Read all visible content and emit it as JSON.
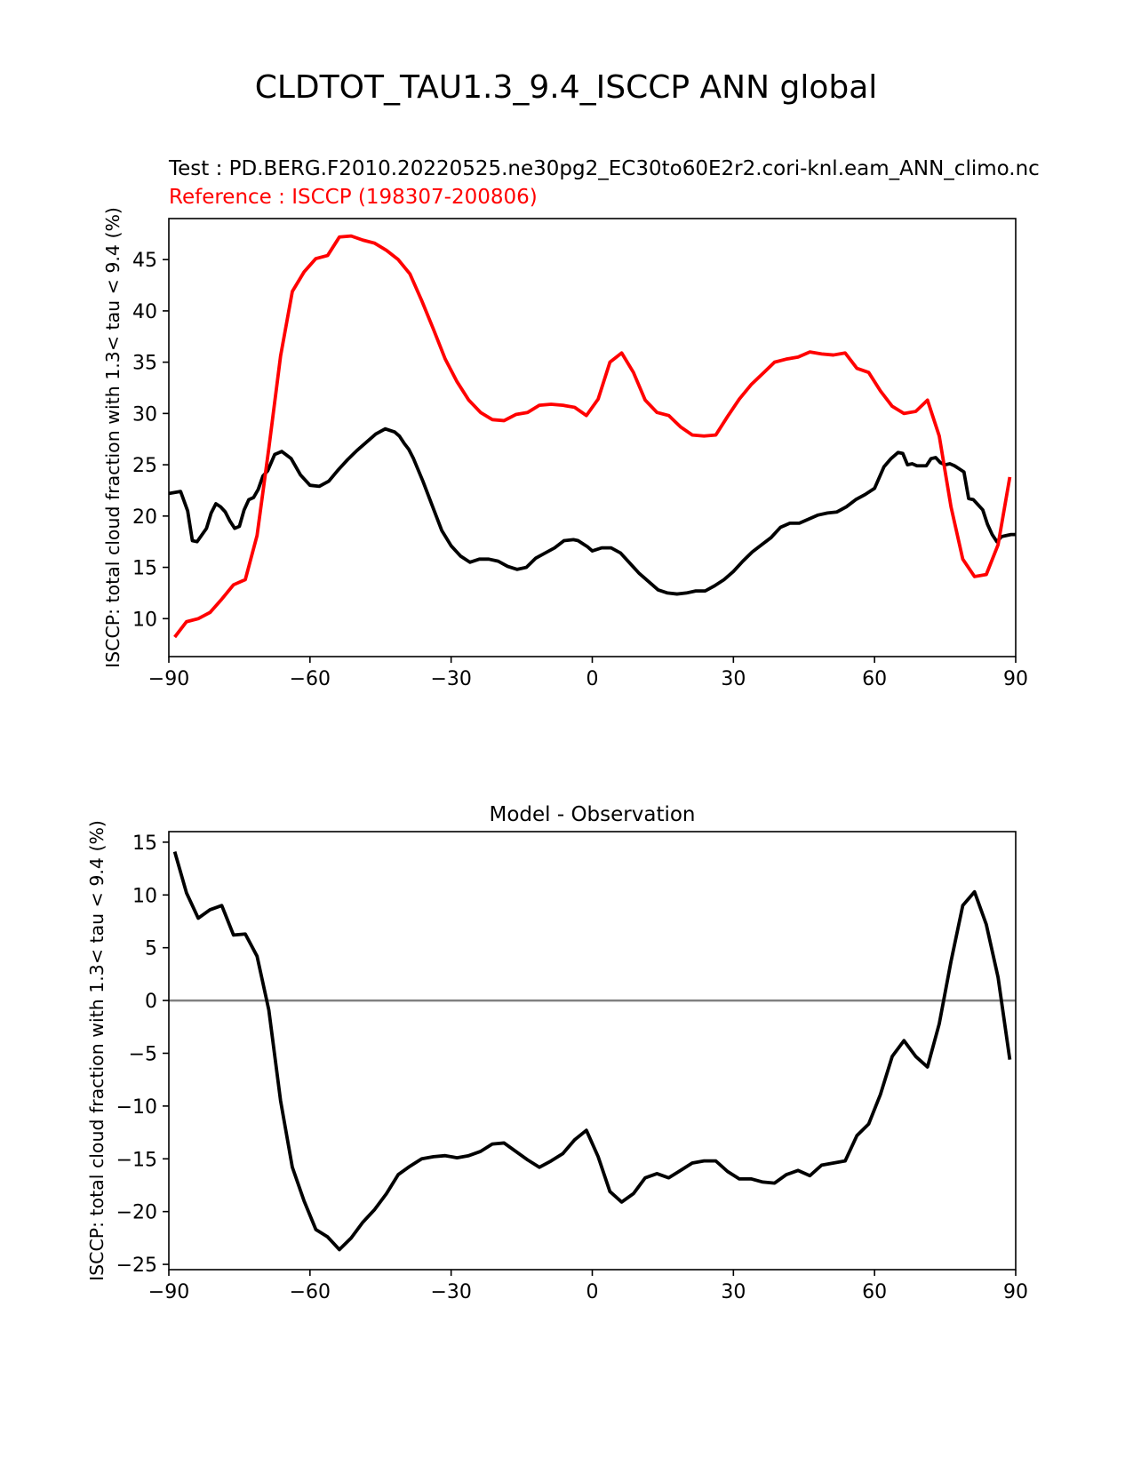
{
  "figure": {
    "title": "CLDTOT_TAU1.3_9.4_ISCCP ANN global",
    "test_label": "Test : PD.BERG.F2010.20220525.ne30pg2_EC30to60E2r2.cori-knl.eam_ANN_climo.nc",
    "reference_label": "Reference : ISCCP (198307-200806)"
  },
  "colors": {
    "test": "#000000",
    "reference": "#ff0000",
    "zero_line": "#808080"
  },
  "chart_data": [
    {
      "type": "line",
      "title": "",
      "xlabel": "",
      "ylabel": "ISCCP: total cloud fraction with 1.3< tau < 9.4 (%)",
      "xlim": [
        -90,
        90
      ],
      "ylim": [
        6.3,
        49
      ],
      "xticks": [
        -90,
        -60,
        -30,
        0,
        30,
        60,
        90
      ],
      "xtick_labels": [
        "−90",
        "−60",
        "−30",
        "0",
        "30",
        "60",
        "90"
      ],
      "yticks": [
        10,
        15,
        20,
        25,
        30,
        35,
        40,
        45
      ],
      "ytick_labels": [
        "10",
        "15",
        "20",
        "25",
        "30",
        "35",
        "40",
        "45"
      ],
      "series": [
        {
          "name": "Test",
          "color": "#000000",
          "x": [
            -90,
            -87.5,
            -86,
            -85,
            -84,
            -82,
            -81,
            -80,
            -79,
            -78,
            -77,
            -76,
            -75,
            -74,
            -73,
            -72,
            -71,
            -70,
            -69,
            -67.5,
            -66,
            -64,
            -62,
            -60,
            -58,
            -56,
            -54,
            -52,
            -50,
            -48,
            -46,
            -44,
            -42,
            -41,
            -40,
            -39,
            -38,
            -36,
            -34,
            -32,
            -30,
            -28,
            -26,
            -24,
            -22,
            -20,
            -18,
            -16,
            -14,
            -12,
            -10,
            -8,
            -6,
            -4,
            -3,
            -2,
            -1,
            0,
            2,
            4,
            6,
            8,
            10,
            12,
            14,
            16,
            18,
            20,
            22,
            24,
            26,
            28,
            30,
            32,
            34,
            36,
            38,
            40,
            42,
            44,
            46,
            48,
            50,
            52,
            54,
            56,
            58,
            60,
            62,
            63.5,
            65,
            66,
            67,
            68,
            69,
            71,
            72,
            73,
            74,
            75,
            76,
            77,
            78,
            79,
            80,
            81,
            82,
            83,
            84,
            85,
            86,
            87,
            88,
            89,
            90
          ],
          "values": [
            22.2,
            22.4,
            20.5,
            17.6,
            17.5,
            18.8,
            20.3,
            21.2,
            20.9,
            20.4,
            19.5,
            18.8,
            19.0,
            20.6,
            21.6,
            21.8,
            22.6,
            23.9,
            24.4,
            26.0,
            26.3,
            25.6,
            24.0,
            23.0,
            22.9,
            23.4,
            24.5,
            25.5,
            26.4,
            27.2,
            28.0,
            28.5,
            28.2,
            27.8,
            27.1,
            26.5,
            25.6,
            23.4,
            21.0,
            18.6,
            17.1,
            16.1,
            15.5,
            15.8,
            15.8,
            15.6,
            15.1,
            14.8,
            15.0,
            15.9,
            16.4,
            16.9,
            17.6,
            17.7,
            17.6,
            17.3,
            17.0,
            16.6,
            16.9,
            16.9,
            16.4,
            15.4,
            14.4,
            13.6,
            12.8,
            12.5,
            12.4,
            12.5,
            12.7,
            12.7,
            13.2,
            13.8,
            14.6,
            15.6,
            16.5,
            17.2,
            17.9,
            18.9,
            19.3,
            19.3,
            19.7,
            20.1,
            20.3,
            20.4,
            20.9,
            21.6,
            22.1,
            22.7,
            24.8,
            25.6,
            26.2,
            26.1,
            25.0,
            25.1,
            24.9,
            24.9,
            25.6,
            25.7,
            25.2,
            25.0,
            25.1,
            24.9,
            24.6,
            24.3,
            21.7,
            21.6,
            21.1,
            20.6,
            19.2,
            18.2,
            17.5,
            18.0,
            18.1,
            18.2,
            18.2
          ],
          "linestyle": "solid"
        },
        {
          "name": "Reference",
          "color": "#ff0000",
          "x": [
            -88.75,
            -86.25,
            -83.75,
            -81.25,
            -78.75,
            -76.25,
            -73.75,
            -71.25,
            -68.75,
            -66.25,
            -63.75,
            -61.25,
            -58.75,
            -56.25,
            -53.75,
            -51.25,
            -48.75,
            -46.25,
            -43.75,
            -41.25,
            -38.75,
            -36.25,
            -33.75,
            -31.25,
            -28.75,
            -26.25,
            -23.75,
            -21.25,
            -18.75,
            -16.25,
            -13.75,
            -11.25,
            -8.75,
            -6.25,
            -3.75,
            -1.25,
            1.25,
            3.75,
            6.25,
            8.75,
            11.25,
            13.75,
            16.25,
            18.75,
            21.25,
            23.75,
            26.25,
            28.75,
            31.25,
            33.75,
            36.25,
            38.75,
            41.25,
            43.75,
            46.25,
            48.75,
            51.25,
            53.75,
            56.25,
            58.75,
            61.25,
            63.75,
            66.25,
            68.75,
            71.25,
            73.75,
            76.25,
            78.75,
            81.25,
            83.75,
            86.25,
            88.75
          ],
          "values": [
            8.2,
            9.7,
            10.0,
            10.6,
            11.9,
            13.3,
            13.8,
            18.1,
            26.6,
            35.6,
            41.9,
            43.8,
            45.1,
            45.4,
            47.2,
            47.3,
            46.9,
            46.6,
            45.9,
            45.0,
            43.6,
            41.0,
            38.2,
            35.3,
            33.1,
            31.3,
            30.1,
            29.4,
            29.3,
            29.9,
            30.1,
            30.8,
            30.9,
            30.8,
            30.6,
            29.8,
            31.4,
            35.0,
            35.9,
            34.0,
            31.3,
            30.1,
            29.8,
            28.7,
            27.9,
            27.8,
            27.9,
            29.7,
            31.4,
            32.8,
            33.9,
            35.0,
            35.3,
            35.5,
            36.0,
            35.8,
            35.7,
            35.9,
            34.4,
            34.0,
            32.2,
            30.7,
            30.0,
            30.2,
            31.3,
            27.8,
            20.9,
            15.8,
            14.1,
            14.3,
            17.2,
            23.8
          ],
          "linestyle": "solid"
        }
      ]
    },
    {
      "type": "line",
      "title": "Model - Observation",
      "xlabel": "",
      "ylabel": "ISCCP: total cloud fraction with 1.3< tau < 9.4 (%)",
      "xlim": [
        -90,
        90
      ],
      "ylim": [
        -25.5,
        16
      ],
      "xticks": [
        -90,
        -60,
        -30,
        0,
        30,
        60,
        90
      ],
      "xtick_labels": [
        "−90",
        "−60",
        "−30",
        "0",
        "30",
        "60",
        "90"
      ],
      "yticks": [
        -25,
        -20,
        -15,
        -10,
        -5,
        0,
        5,
        10,
        15
      ],
      "ytick_labels": [
        "−25",
        "−20",
        "−15",
        "−10",
        "−5",
        "0",
        "5",
        "10",
        "15"
      ],
      "zero_line": true,
      "series": [
        {
          "name": "Model - Observation",
          "color": "#000000",
          "x": [
            -88.75,
            -86.25,
            -83.75,
            -81.25,
            -78.75,
            -76.25,
            -73.75,
            -71.25,
            -68.75,
            -66.25,
            -63.75,
            -61.25,
            -58.75,
            -56.25,
            -53.75,
            -51.25,
            -48.75,
            -46.25,
            -43.75,
            -41.25,
            -38.75,
            -36.25,
            -33.75,
            -31.25,
            -28.75,
            -26.25,
            -23.75,
            -21.25,
            -18.75,
            -16.25,
            -13.75,
            -11.25,
            -8.75,
            -6.25,
            -3.75,
            -1.25,
            1.25,
            3.75,
            6.25,
            8.75,
            11.25,
            13.75,
            16.25,
            18.75,
            21.25,
            23.75,
            26.25,
            28.75,
            31.25,
            33.75,
            36.25,
            38.75,
            41.25,
            43.75,
            46.25,
            48.75,
            51.25,
            53.75,
            56.25,
            58.75,
            61.25,
            63.75,
            66.25,
            68.75,
            71.25,
            73.75,
            76.25,
            78.75,
            81.25,
            83.75,
            86.25,
            88.75
          ],
          "values": [
            14.1,
            10.2,
            7.8,
            8.6,
            9.0,
            6.2,
            6.3,
            4.2,
            -0.9,
            -9.5,
            -15.8,
            -19.0,
            -21.7,
            -22.4,
            -23.6,
            -22.5,
            -21.0,
            -19.8,
            -18.3,
            -16.5,
            -15.7,
            -15.0,
            -14.8,
            -14.7,
            -14.9,
            -14.7,
            -14.3,
            -13.6,
            -13.5,
            -14.3,
            -15.1,
            -15.8,
            -15.2,
            -14.5,
            -13.2,
            -12.3,
            -14.8,
            -18.1,
            -19.1,
            -18.3,
            -16.8,
            -16.4,
            -16.8,
            -16.1,
            -15.4,
            -15.2,
            -15.2,
            -16.2,
            -16.9,
            -16.9,
            -17.2,
            -17.3,
            -16.5,
            -16.1,
            -16.6,
            -15.6,
            -15.4,
            -15.2,
            -12.8,
            -11.7,
            -8.9,
            -5.3,
            -3.8,
            -5.3,
            -6.3,
            -2.2,
            3.7,
            9.0,
            10.3,
            7.2,
            2.2,
            -5.6
          ],
          "linestyle": "solid"
        }
      ]
    }
  ]
}
